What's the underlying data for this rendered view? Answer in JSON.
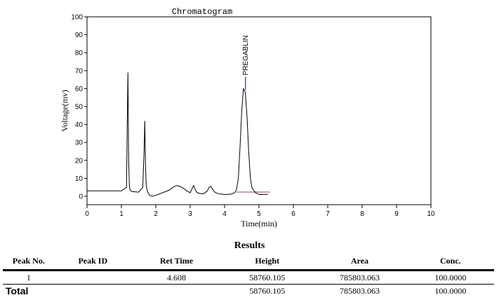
{
  "chart_data": {
    "type": "line",
    "title": "Chromatogram",
    "xlabel": "Time(min)",
    "ylabel": "Voltage(mv)",
    "xlim": [
      0,
      10
    ],
    "ylim": [
      0,
      100
    ],
    "x_ticks": [
      "0",
      "1",
      "2",
      "3",
      "4",
      "5",
      "6",
      "7",
      "8",
      "9",
      "10"
    ],
    "y_ticks": [
      "0",
      "10",
      "20",
      "30",
      "40",
      "50",
      "60",
      "70",
      "80",
      "90",
      "100"
    ],
    "grid": false,
    "series": [
      {
        "x": [
          0,
          1.0,
          1.15,
          1.17,
          1.19,
          1.21,
          1.23,
          1.25,
          1.3,
          1.5,
          1.62,
          1.66,
          1.68,
          1.7,
          1.72,
          1.76,
          1.82,
          1.9,
          2.0,
          2.2,
          2.4,
          2.5,
          2.6,
          2.7,
          2.8,
          2.9,
          3.0,
          3.05,
          3.1,
          3.15,
          3.2,
          3.3,
          3.4,
          3.5,
          3.55,
          3.6,
          3.65,
          3.7,
          3.8,
          3.9,
          4.0,
          4.1,
          4.2,
          4.3,
          4.35,
          4.4,
          4.45,
          4.5,
          4.55,
          4.6,
          4.65,
          4.7,
          4.75,
          4.8,
          4.9,
          5.0,
          5.1,
          5.26
        ],
        "y": [
          3.0,
          3.0,
          5.0,
          40.0,
          69.0,
          20.0,
          6.0,
          3.5,
          2.6,
          2.3,
          5.0,
          25.0,
          42.0,
          18.0,
          6.0,
          2.5,
          0.5,
          0.0,
          0.5,
          2.0,
          3.5,
          5.0,
          6.0,
          5.5,
          4.5,
          3.0,
          2.0,
          4.0,
          6.0,
          3.5,
          2.0,
          1.5,
          1.5,
          3.0,
          5.0,
          5.5,
          4.0,
          2.5,
          1.5,
          1.2,
          1.0,
          1.0,
          1.3,
          2.0,
          4.0,
          10.0,
          28.0,
          48.0,
          60.0,
          58.0,
          45.0,
          25.0,
          10.0,
          4.5,
          2.0,
          1.0,
          1.0,
          1.0
        ]
      }
    ],
    "annotations": [
      {
        "text": "PREGABLIN",
        "x": 4.608,
        "y": 67
      }
    ]
  },
  "results": {
    "title": "Results",
    "columns": [
      "Peak No.",
      "Peak ID",
      "Ret Time",
      "Height",
      "Area",
      "Conc."
    ],
    "rows": [
      [
        "1",
        "",
        "4.608",
        "58760.105",
        "785803.063",
        "100.0000"
      ]
    ],
    "total": [
      "Total",
      "",
      "",
      "58760.105",
      "785803.063",
      "100.0000"
    ]
  }
}
